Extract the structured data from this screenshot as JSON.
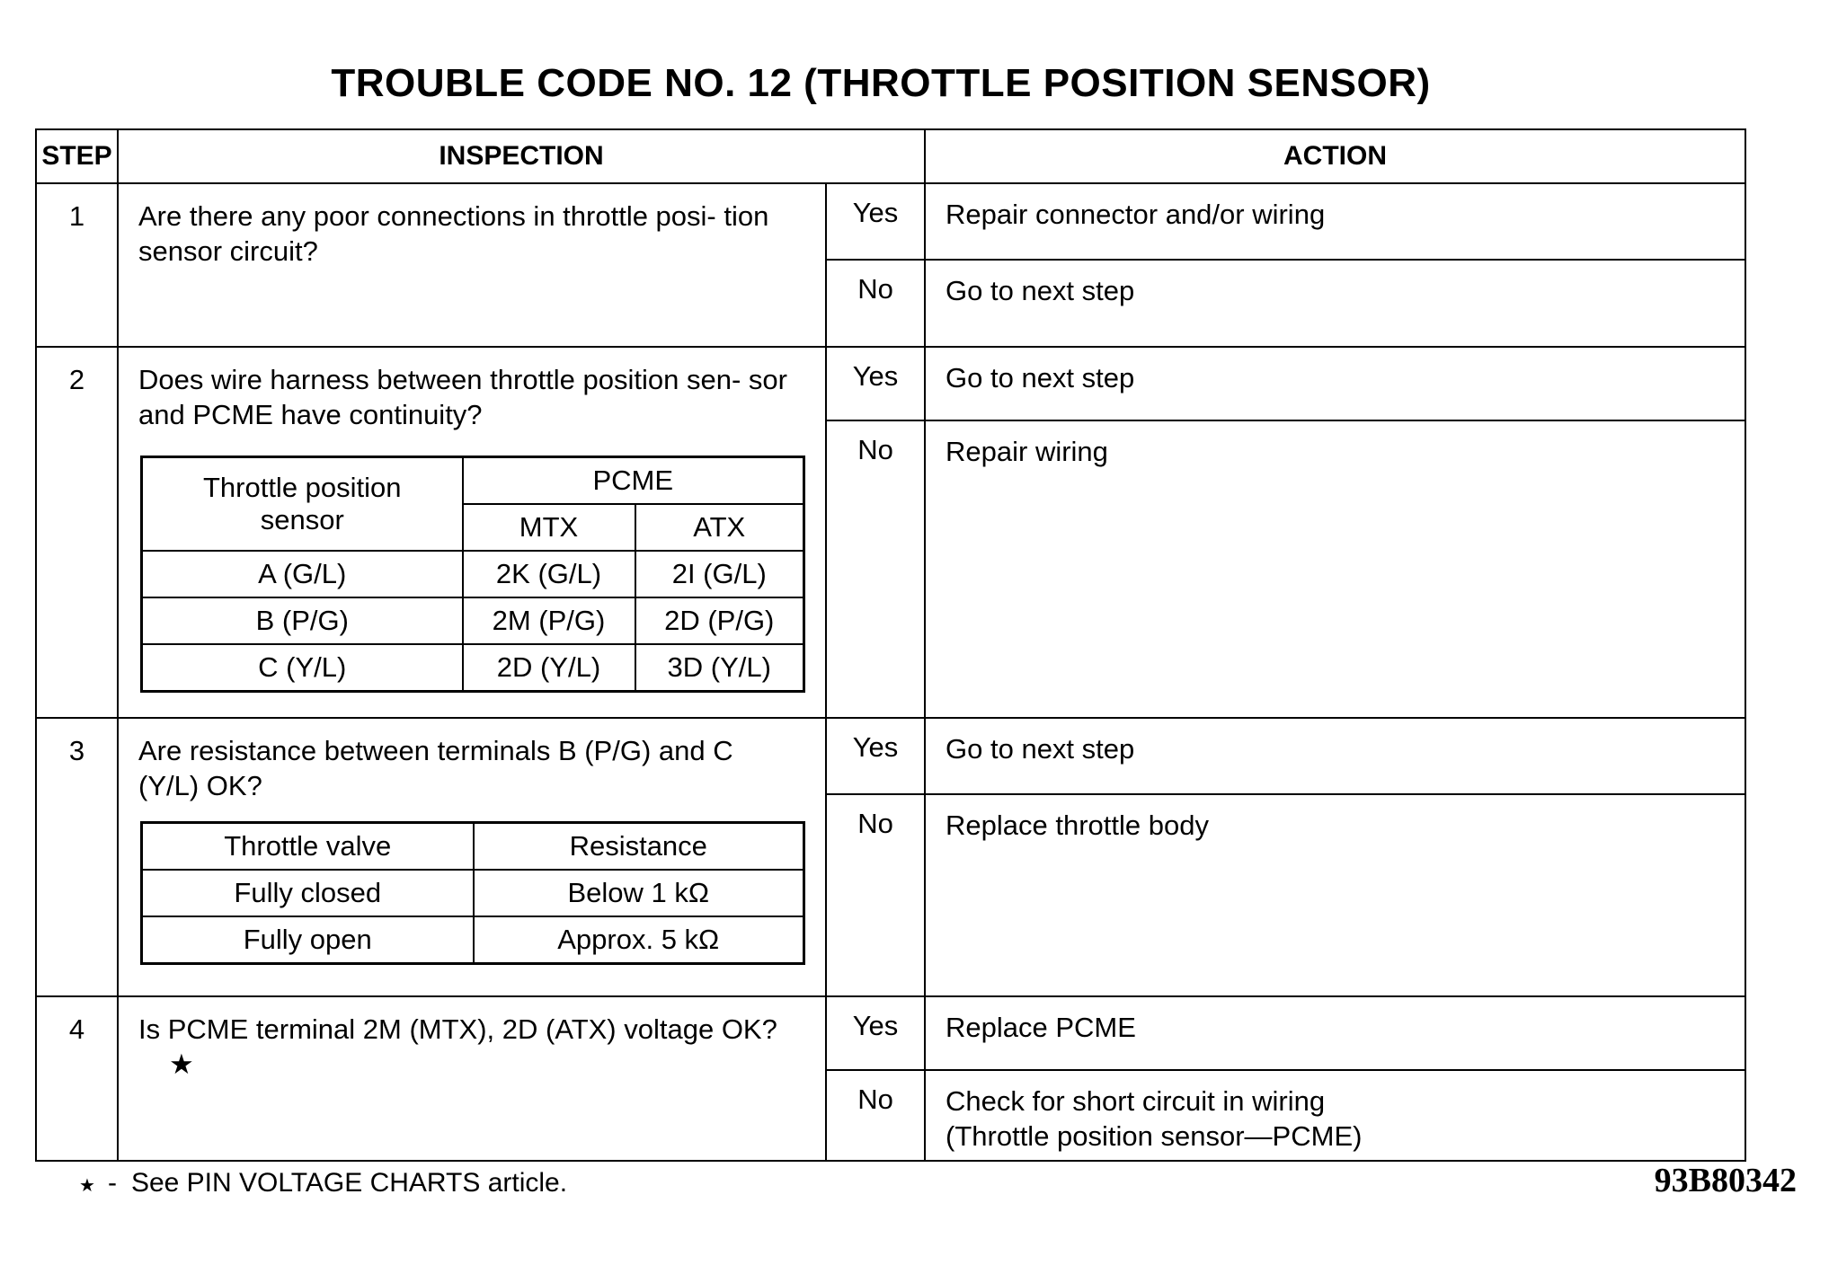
{
  "title": "TROUBLE CODE NO. 12 (THROTTLE POSITION SENSOR)",
  "headers": {
    "step": "STEP",
    "inspection": "INSPECTION",
    "action": "ACTION"
  },
  "steps": [
    {
      "number": "1",
      "inspection": "Are there any poor connections in throttle posi- tion sensor circuit?",
      "yes_label": "Yes",
      "yes_action": "Repair connector and/or wiring",
      "no_label": "No",
      "no_action": "Go to next step"
    },
    {
      "number": "2",
      "inspection": "Does wire harness between throttle position sen- sor and PCME have continuity?",
      "yes_label": "Yes",
      "yes_action": "Go to next step",
      "no_label": "No",
      "no_action": "Repair wiring",
      "table": {
        "header_sensor": "Throttle position sensor",
        "header_pcme": "PCME",
        "header_mtx": "MTX",
        "header_atx": "ATX",
        "rows": [
          {
            "sensor": "A (G/L)",
            "mtx": "2K (G/L)",
            "atx": "2I (G/L)"
          },
          {
            "sensor": "B (P/G)",
            "mtx": "2M (P/G)",
            "atx": "2D (P/G)"
          },
          {
            "sensor": "C (Y/L)",
            "mtx": "2D (Y/L)",
            "atx": "3D (Y/L)"
          }
        ]
      }
    },
    {
      "number": "3",
      "inspection": "Are resistance between terminals B (P/G) and C (Y/L) OK?",
      "yes_label": "Yes",
      "yes_action": "Go to next step",
      "no_label": "No",
      "no_action": "Replace throttle body",
      "table": {
        "header_valve": "Throttle valve",
        "header_resistance": "Resistance",
        "rows": [
          {
            "valve": "Fully closed",
            "resistance": "Below 1 kΩ"
          },
          {
            "valve": "Fully open",
            "resistance": "Approx. 5 kΩ"
          }
        ]
      }
    },
    {
      "number": "4",
      "inspection": "Is PCME terminal 2M (MTX), 2D (ATX) voltage OK?",
      "inspection_mark": "★",
      "yes_label": "Yes",
      "yes_action": "Replace PCME",
      "no_label": "No",
      "no_action": "Check for short circuit in wiring",
      "no_action_line2": "(Throttle position sensor—PCME)"
    }
  ],
  "footnote": {
    "mark": "★",
    "dash": "-",
    "text": "See PIN VOLTAGE CHARTS article."
  },
  "figure_code": "93B80342"
}
